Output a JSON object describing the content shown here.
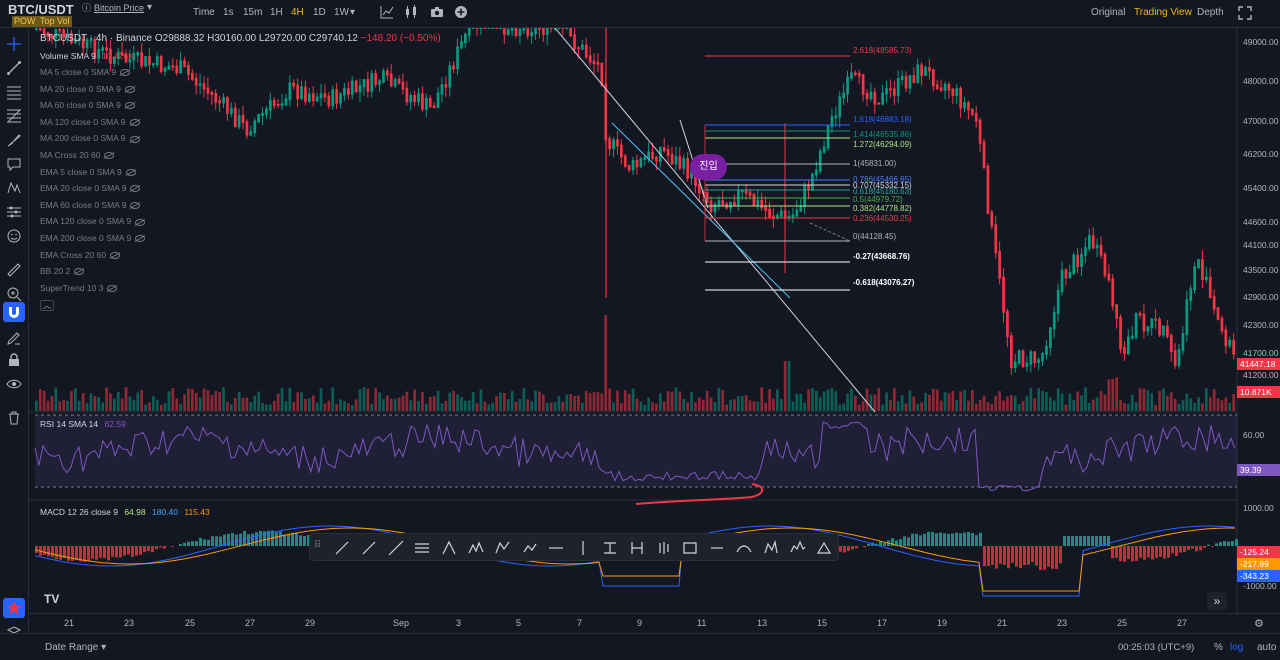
{
  "header": {
    "symbol": "BTC/USDT",
    "description": "Bitcoin Price",
    "badges": [
      "POW",
      "Top Vol"
    ],
    "timeframes": [
      "Time",
      "1s",
      "15m",
      "1H",
      "4H",
      "1D",
      "1W"
    ],
    "active_timeframe": "4H",
    "views": [
      "Original",
      "Trading View",
      "Depth"
    ],
    "active_view": "Trading View"
  },
  "legend": {
    "ohlc_prefix": "BTCUSDT · 4h · Binance",
    "open": "O29888.32",
    "high": "H30160.00",
    "low": "L29720.00",
    "close": "C29740.12",
    "change": "−148.20 (−0.50%)",
    "volume": "Volume SMA 9",
    "volume_value": "10.426K",
    "indicators": [
      "MA 5 close 0 SMA 9",
      "MA 20 close 0 SMA 9",
      "MA 60 close 0 SMA 9",
      "MA 120 close 0 SMA 9",
      "MA 200 close 0 SMA 9",
      "MA Cross 20 60",
      "EMA 5 close 0 SMA 9",
      "EMA 20 close 0 SMA 9",
      "EMA 60 close 0 SMA 9",
      "EMA 120 close 0 SMA 9",
      "EMA 200 close 0 SMA 9",
      "EMA Cross 20 60",
      "BB 20 2",
      "SuperTrend 10 3"
    ],
    "rsi": "RSI 14 SMA 14",
    "rsi_value": "62.59",
    "macd": "MACD 12 26 close 9",
    "macd_v1": "64.98",
    "macd_v2": "180.40",
    "macd_v3": "115.43"
  },
  "price_axis": [
    "49000.00",
    "48000.00",
    "47000.00",
    "46200.00",
    "45400.00",
    "44600.00",
    "44100.00",
    "43500.00",
    "42900.00",
    "42300.00",
    "41700.00",
    "41200.00"
  ],
  "price_tag": "41447.18",
  "volume_tag": "10.871K",
  "rsi_axis": "60.00",
  "rsi_tag": "39.39",
  "macd_axis": [
    "1000.00",
    "-1000.00"
  ],
  "macd_tags": [
    "-125.24",
    "-217.99",
    "-343.23"
  ],
  "fib_levels": [
    {
      "label": "2.618(48585.73)",
      "color": "#f23645"
    },
    {
      "label": "1.618(46883.18)",
      "color": "#2962ff"
    },
    {
      "label": "1.414(46535.86)",
      "color": "#089981"
    },
    {
      "label": "1.272(46294.09)",
      "color": "#b2e085"
    },
    {
      "label": "1(45831.00)",
      "color": "#b2b5be"
    },
    {
      "label": "0.786(45466.65)",
      "color": "#4a7cff"
    },
    {
      "label": "0.707(45332.15)",
      "color": "#d1d4dc"
    },
    {
      "label": "0.618(45180.63)",
      "color": "#26a69a"
    },
    {
      "label": "0.5(44979.72)",
      "color": "#4caf50"
    },
    {
      "label": "0.382(44778.82)",
      "color": "#b2e085"
    },
    {
      "label": "0.236(44530.25)",
      "color": "#f23645"
    },
    {
      "label": "0(44128.45)",
      "color": "#b2b5be"
    },
    {
      "label": "-0.27(43668.76)",
      "color": "#ffffff"
    },
    {
      "label": "-0.618(43076.27)",
      "color": "#ffffff"
    }
  ],
  "entry_label": "진입",
  "dates": [
    "21",
    "23",
    "25",
    "27",
    "29",
    "Sep",
    "3",
    "5",
    "7",
    "9",
    "11",
    "13",
    "15",
    "17",
    "19",
    "21",
    "23",
    "25",
    "27"
  ],
  "bottom": {
    "date_range": "Date Range",
    "clock": "00:25:03 (UTC+9)",
    "percent": "%",
    "log": "log",
    "auto": "auto"
  },
  "colors": {
    "up": "#089981",
    "down": "#f23645",
    "rsi": "#7e57c2",
    "bg": "#131722"
  }
}
